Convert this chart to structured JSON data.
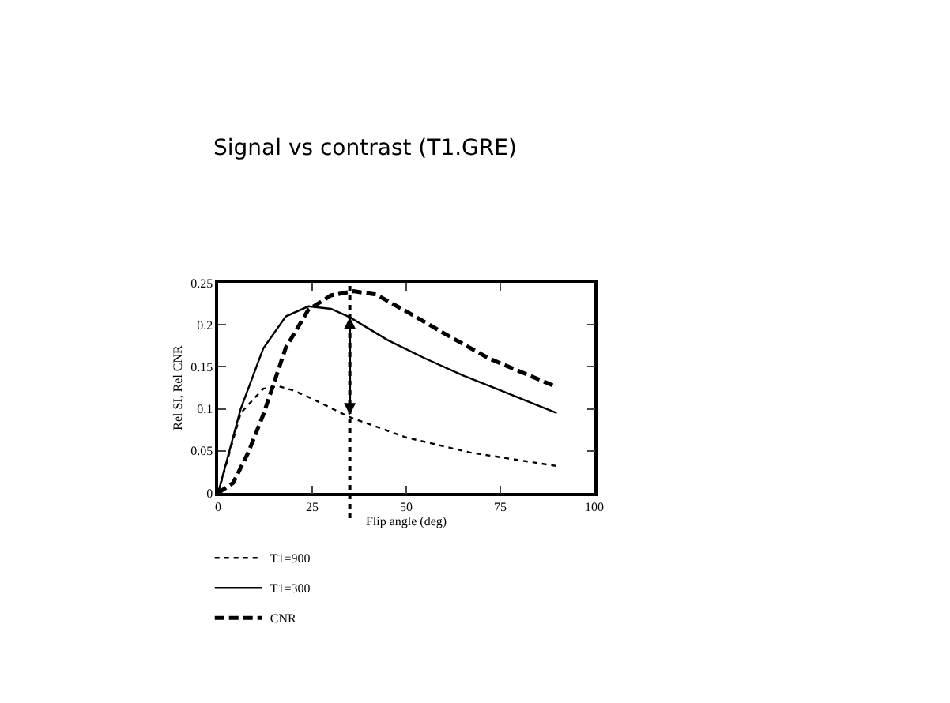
{
  "chart_data": {
    "type": "line",
    "title": "Signal vs contrast (T1.GRE)",
    "xlabel": "Flip angle (deg)",
    "ylabel": "Rel SI, Rel CNR",
    "series": [
      {
        "name": "T1=900",
        "color": "#000000",
        "line_style": "dotted",
        "x": [
          0,
          6,
          12,
          16,
          20,
          25,
          35,
          50,
          67,
          90
        ],
        "values": [
          0,
          0.095,
          0.124,
          0.127,
          0.122,
          0.112,
          0.09,
          0.066,
          0.048,
          0.032
        ]
      },
      {
        "name": "T1=300",
        "color": "#000000",
        "line_style": "solid",
        "x": [
          0,
          6,
          12,
          18,
          24,
          30,
          35,
          45,
          55,
          65,
          75,
          90
        ],
        "values": [
          0,
          0.1,
          0.172,
          0.21,
          0.222,
          0.219,
          0.209,
          0.182,
          0.16,
          0.14,
          0.122,
          0.095
        ]
      },
      {
        "name": "CNR",
        "color": "#000000",
        "line_style": "dashed",
        "x": [
          0,
          4,
          8,
          12,
          18,
          24,
          30,
          36,
          42,
          50,
          60,
          72,
          90
        ],
        "values": [
          0,
          0.012,
          0.048,
          0.093,
          0.173,
          0.218,
          0.235,
          0.24,
          0.236,
          0.216,
          0.19,
          0.16,
          0.126
        ]
      }
    ],
    "xlim": [
      0,
      100
    ],
    "xticks": [
      0,
      25,
      50,
      75,
      100
    ],
    "ylim": [
      0,
      0.25
    ],
    "yticks": [
      0,
      0.05,
      0.1,
      0.15,
      0.2,
      0.25
    ],
    "ref_lines": [
      {
        "axis": "x",
        "value": 35,
        "line_style": "dotted",
        "color": "#000000"
      }
    ],
    "legend": "bottom left",
    "marker": "none"
  }
}
